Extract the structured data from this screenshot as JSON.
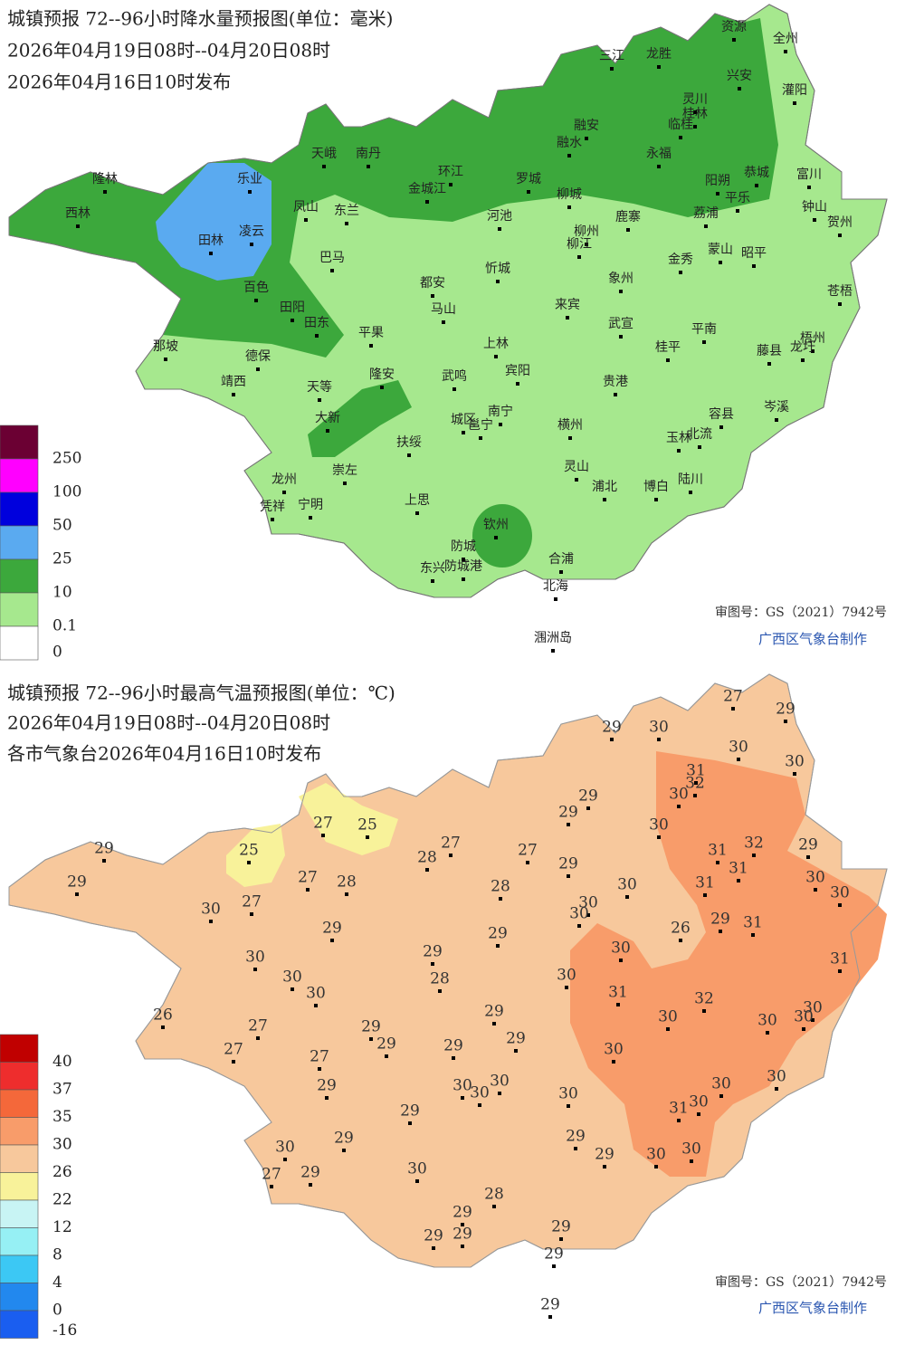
{
  "precip_map": {
    "title": "城镇预报 72--96小时降水量预报图(单位：毫米)",
    "period": "2026年04月19日08时--04月20日08时",
    "issued": "2026年04月16日10时发布",
    "legend": {
      "labels": [
        250,
        100,
        50,
        25,
        10,
        0.1,
        0
      ],
      "colors": [
        "#6b0033",
        "#ff00ff",
        "#0000dd",
        "#5aaaf0",
        "#3ca83c",
        "#a6e88e",
        "#ffffff"
      ]
    },
    "cities": [
      "乐业",
      "隆林",
      "西林",
      "田林",
      "凌云",
      "凤山",
      "东兰",
      "天峨",
      "南丹",
      "环江",
      "金城江",
      "罗城",
      "三江",
      "龙胜",
      "资源",
      "全州",
      "兴安",
      "灌阳",
      "灵川",
      "桂林",
      "临桂",
      "融安",
      "融水",
      "永福",
      "阳朔",
      "恭城",
      "平乐",
      "富川",
      "钟山",
      "贺州",
      "荔浦",
      "柳城",
      "鹿寨",
      "河池",
      "柳州",
      "柳江",
      "蒙山",
      "昭平",
      "金秀",
      "巴马",
      "忻城",
      "都安",
      "象州",
      "百色",
      "田阳",
      "田东",
      "马山",
      "来宾",
      "武宣",
      "平南",
      "苍梧",
      "梧州",
      "藤县",
      "龙圩",
      "那坡",
      "德保",
      "平果",
      "隆安",
      "靖西",
      "天等",
      "武鸣",
      "上林",
      "宾阳",
      "桂平",
      "贵港",
      "岑溪",
      "大新",
      "南宁",
      "邕宁",
      "城区",
      "横州",
      "容县",
      "北流",
      "玉林",
      "扶绥",
      "崇左",
      "龙州",
      "宁明",
      "凭祥",
      "灵山",
      "浦北",
      "博白",
      "陆川",
      "上思",
      "钦州",
      "防城",
      "防城港",
      "东兴",
      "合浦",
      "北海",
      "涠洲岛"
    ],
    "approval": "审图号：GS（2021）7942号",
    "producer": "广西区气象台制作"
  },
  "temp_map": {
    "title": "城镇预报 72--96小时最高气温预报图(单位：℃)",
    "period": "2026年04月19日08时--04月20日08时",
    "issued": "各市气象台2026年04月16日10时发布",
    "legend": {
      "labels": [
        40,
        37,
        35,
        30,
        26,
        22,
        12,
        8,
        4,
        0,
        -16
      ],
      "colors": [
        "#c00000",
        "#ee2d2d",
        "#f4683a",
        "#f89c6a",
        "#f7c89c",
        "#f8f29a",
        "#c8f4f4",
        "#96f0f4",
        "#3cc8f4",
        "#2288ee",
        "#1a5ef0"
      ]
    },
    "values": [
      27,
      29,
      29,
      30,
      30,
      30,
      31,
      32,
      30,
      29,
      29,
      30,
      27,
      25,
      29,
      25,
      27,
      27,
      28,
      29,
      31,
      32,
      31,
      29,
      31,
      29,
      27,
      28,
      28,
      30,
      30,
      30,
      30,
      27,
      30,
      30,
      26,
      29,
      31,
      29,
      29,
      30,
      30,
      29,
      31,
      30,
      28,
      30,
      30,
      31,
      32,
      30,
      26,
      30,
      30,
      30,
      29,
      27,
      29,
      29,
      29,
      29,
      27,
      27,
      30,
      30,
      30,
      30,
      29,
      30,
      30,
      31,
      30,
      30,
      29,
      29,
      29,
      29,
      30,
      30,
      30,
      27,
      29,
      30,
      28,
      29,
      29,
      29,
      29,
      29,
      29
    ],
    "approval": "审图号：GS（2021）7942号",
    "producer": "广西区气象台制作"
  }
}
